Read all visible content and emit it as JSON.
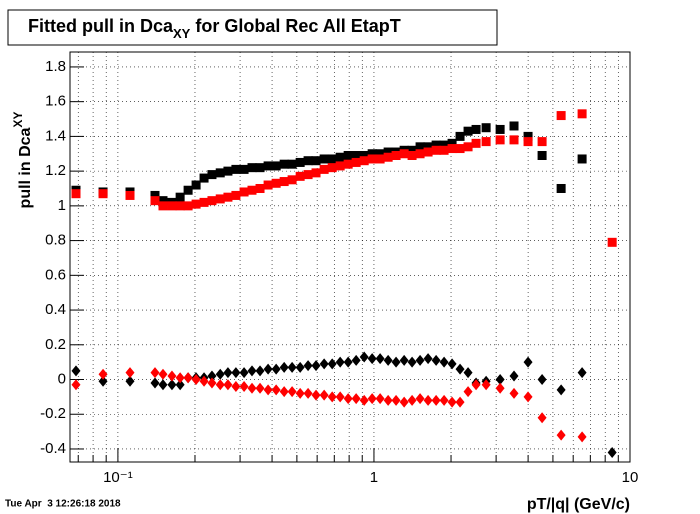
{
  "chart_data": {
    "type": "scatter",
    "title": {
      "main": "Fitted pull in Dca",
      "sub": "XY",
      "tail": " for Global Rec All EtapT"
    },
    "ylabel": {
      "main": "pull in Dca",
      "sub": "XY"
    },
    "xlabel": "pT/|q| (GeV/c)",
    "timestamp": "Tue Apr  3 12:26:18 2018",
    "xlog": true,
    "grid": true,
    "xlim": [
      0.065,
      10
    ],
    "ylim": [
      -0.475,
      1.886
    ],
    "xticks": [
      {
        "value": 0.1,
        "label": "10⁻¹"
      },
      1,
      10
    ],
    "xminor": [
      0.07,
      0.08,
      0.09,
      0.2,
      0.3,
      0.4,
      0.5,
      0.6,
      0.7,
      0.8,
      0.9,
      2,
      3,
      4,
      5,
      6,
      7,
      8,
      9
    ],
    "yticks": [
      -0.4,
      -0.2,
      0,
      0.2,
      0.4,
      0.6,
      0.8,
      1,
      1.2,
      1.4,
      1.6,
      1.8
    ],
    "x": [
      0.0686,
      0.0875,
      0.1115,
      0.1396,
      0.15,
      0.1626,
      0.175,
      0.188,
      0.202,
      0.217,
      0.233,
      0.251,
      0.269,
      0.289,
      0.311,
      0.334,
      0.359,
      0.386,
      0.415,
      0.446,
      0.479,
      0.515,
      0.553,
      0.594,
      0.639,
      0.687,
      0.738,
      0.793,
      0.852,
      0.916,
      0.984,
      1.057,
      1.136,
      1.22,
      1.312,
      1.409,
      1.514,
      1.627,
      1.749,
      1.879,
      2.019,
      2.169,
      2.331,
      2.505,
      2.742,
      3.11,
      3.524,
      3.998,
      4.536,
      5.383,
      6.5,
      8.518
    ],
    "series": [
      {
        "marker": "square",
        "color": "#000000",
        "values": [
          1.09,
          1.08,
          1.08,
          1.06,
          1.03,
          1.02,
          1.05,
          1.09,
          1.12,
          1.16,
          1.18,
          1.19,
          1.2,
          1.21,
          1.21,
          1.22,
          1.22,
          1.23,
          1.23,
          1.24,
          1.24,
          1.25,
          1.26,
          1.26,
          1.27,
          1.27,
          1.28,
          1.29,
          1.29,
          1.29,
          1.3,
          1.3,
          1.31,
          1.31,
          1.32,
          1.32,
          1.34,
          1.34,
          1.35,
          1.35,
          1.36,
          1.4,
          1.43,
          1.44,
          1.45,
          1.44,
          1.46,
          1.4,
          1.29,
          1.1,
          1.27,
          null
        ]
      },
      {
        "marker": "square",
        "color": "#ff0000",
        "values": [
          1.07,
          1.07,
          1.06,
          1.03,
          1.0,
          1.0,
          1.0,
          1.0,
          1.01,
          1.02,
          1.03,
          1.04,
          1.05,
          1.06,
          1.08,
          1.09,
          1.1,
          1.12,
          1.13,
          1.14,
          1.15,
          1.17,
          1.18,
          1.19,
          1.21,
          1.22,
          1.23,
          1.24,
          1.25,
          1.26,
          1.27,
          1.27,
          1.28,
          1.29,
          1.3,
          1.29,
          1.3,
          1.31,
          1.32,
          1.32,
          1.33,
          1.33,
          1.34,
          1.36,
          1.37,
          1.38,
          1.38,
          1.37,
          1.37,
          1.52,
          1.53,
          0.79
        ]
      },
      {
        "marker": "diamond",
        "color": "#000000",
        "values": [
          0.05,
          -0.01,
          -0.01,
          -0.02,
          -0.03,
          -0.03,
          -0.03,
          0.01,
          0.01,
          0.01,
          0.02,
          0.03,
          0.04,
          0.04,
          0.04,
          0.05,
          0.05,
          0.06,
          0.06,
          0.07,
          0.07,
          0.07,
          0.08,
          0.08,
          0.09,
          0.09,
          0.1,
          0.1,
          0.11,
          0.13,
          0.12,
          0.12,
          0.11,
          0.1,
          0.11,
          0.1,
          0.11,
          0.12,
          0.11,
          0.1,
          0.09,
          0.06,
          0.04,
          -0.02,
          -0.01,
          0.0,
          0.02,
          0.1,
          0.0,
          -0.06,
          0.04,
          -0.42
        ]
      },
      {
        "marker": "diamond",
        "color": "#ff0000",
        "values": [
          -0.03,
          0.03,
          0.04,
          0.04,
          0.03,
          0.02,
          0.01,
          0.01,
          0.0,
          -0.01,
          -0.02,
          -0.03,
          -0.03,
          -0.04,
          -0.04,
          -0.05,
          -0.05,
          -0.06,
          -0.06,
          -0.07,
          -0.07,
          -0.08,
          -0.08,
          -0.09,
          -0.09,
          -0.1,
          -0.1,
          -0.11,
          -0.11,
          -0.12,
          -0.11,
          -0.11,
          -0.12,
          -0.12,
          -0.13,
          -0.12,
          -0.11,
          -0.12,
          -0.12,
          -0.12,
          -0.13,
          -0.13,
          -0.07,
          -0.03,
          -0.03,
          -0.05,
          -0.08,
          -0.1,
          -0.22,
          -0.32,
          -0.33,
          null
        ]
      }
    ]
  }
}
